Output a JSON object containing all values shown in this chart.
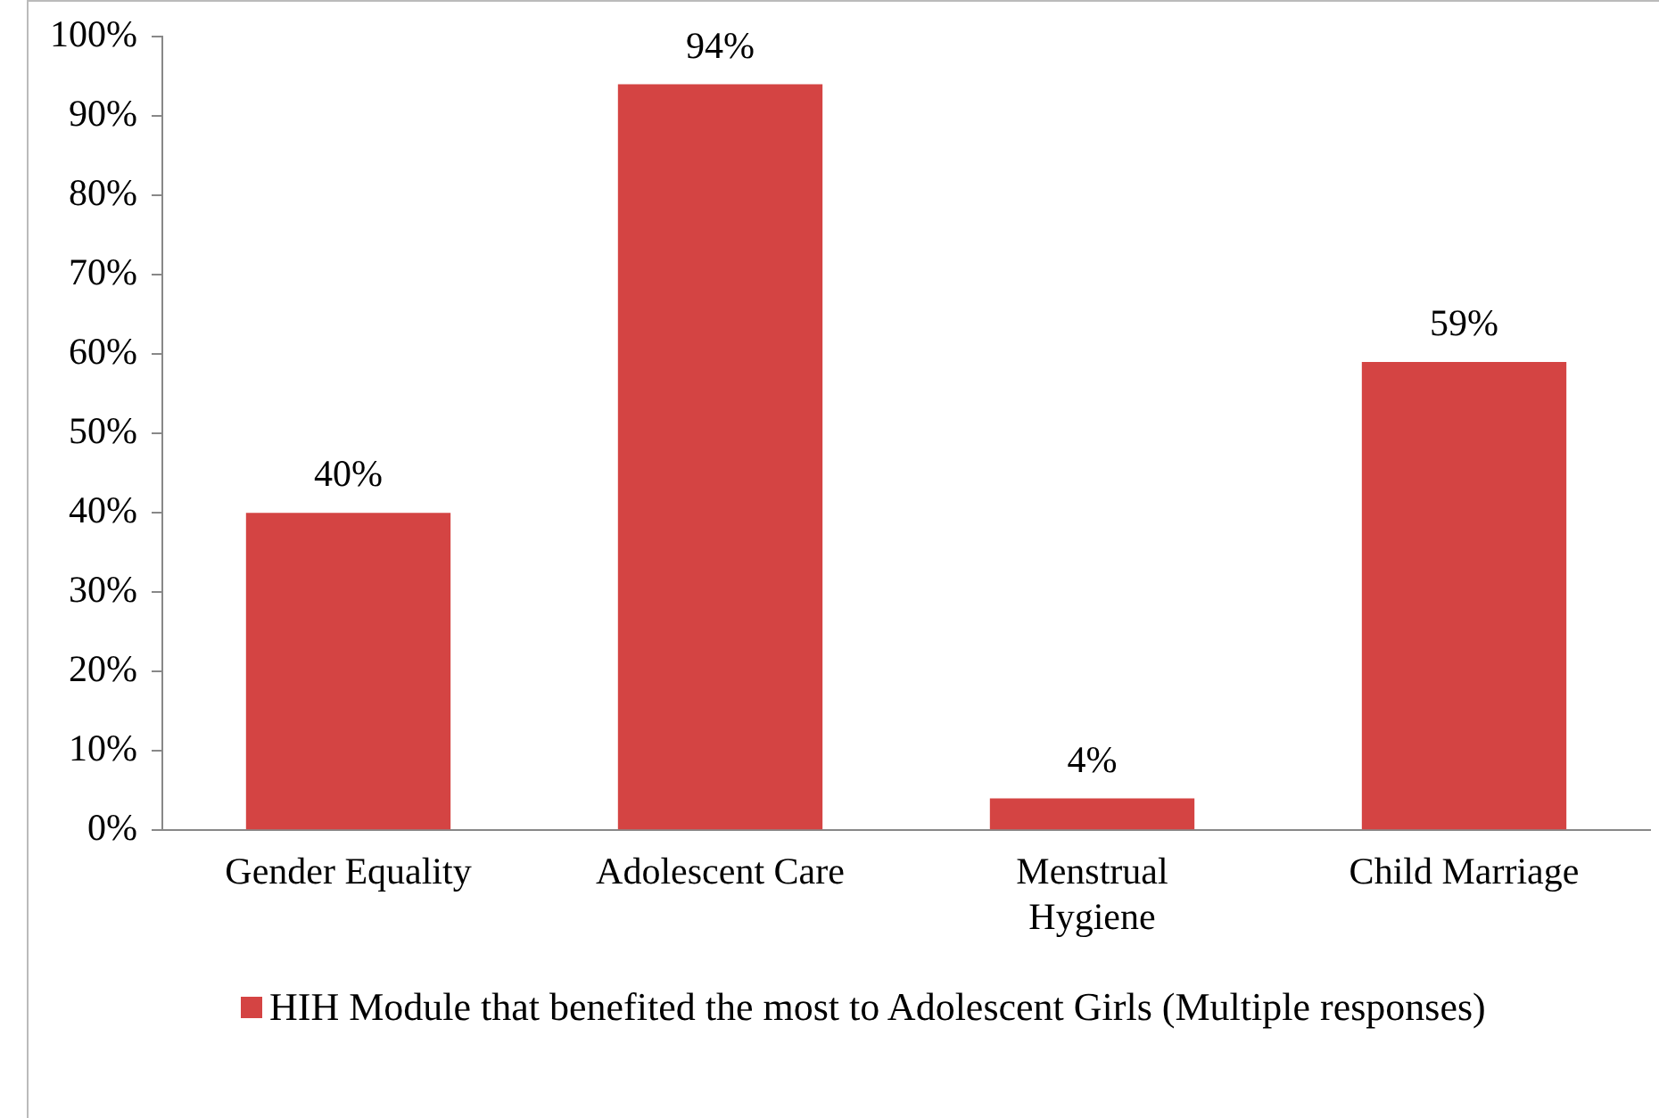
{
  "chart_data": {
    "type": "bar",
    "categories": [
      "Gender Equality",
      "Adolescent Care",
      "Menstrual Hygiene",
      "Child Marriage"
    ],
    "series": [
      {
        "name": "HIH Module that benefited the most to Adolescent Girls (Multiple responses)",
        "color": "#d44443",
        "values": [
          40,
          94,
          4,
          59
        ],
        "value_labels": [
          "40%",
          "94%",
          "4%",
          "59%"
        ]
      }
    ],
    "ylim": [
      0,
      100
    ],
    "yticks": [
      {
        "value": 0,
        "label": "0%"
      },
      {
        "value": 10,
        "label": "10%"
      },
      {
        "value": 20,
        "label": "20%"
      },
      {
        "value": 30,
        "label": "30%"
      },
      {
        "value": 40,
        "label": "40%"
      },
      {
        "value": 50,
        "label": "50%"
      },
      {
        "value": 60,
        "label": "60%"
      },
      {
        "value": 70,
        "label": "70%"
      },
      {
        "value": 80,
        "label": "80%"
      },
      {
        "value": 90,
        "label": "90%"
      },
      {
        "value": 100,
        "label": "100%"
      }
    ],
    "grid": false,
    "legend": "bottom"
  }
}
